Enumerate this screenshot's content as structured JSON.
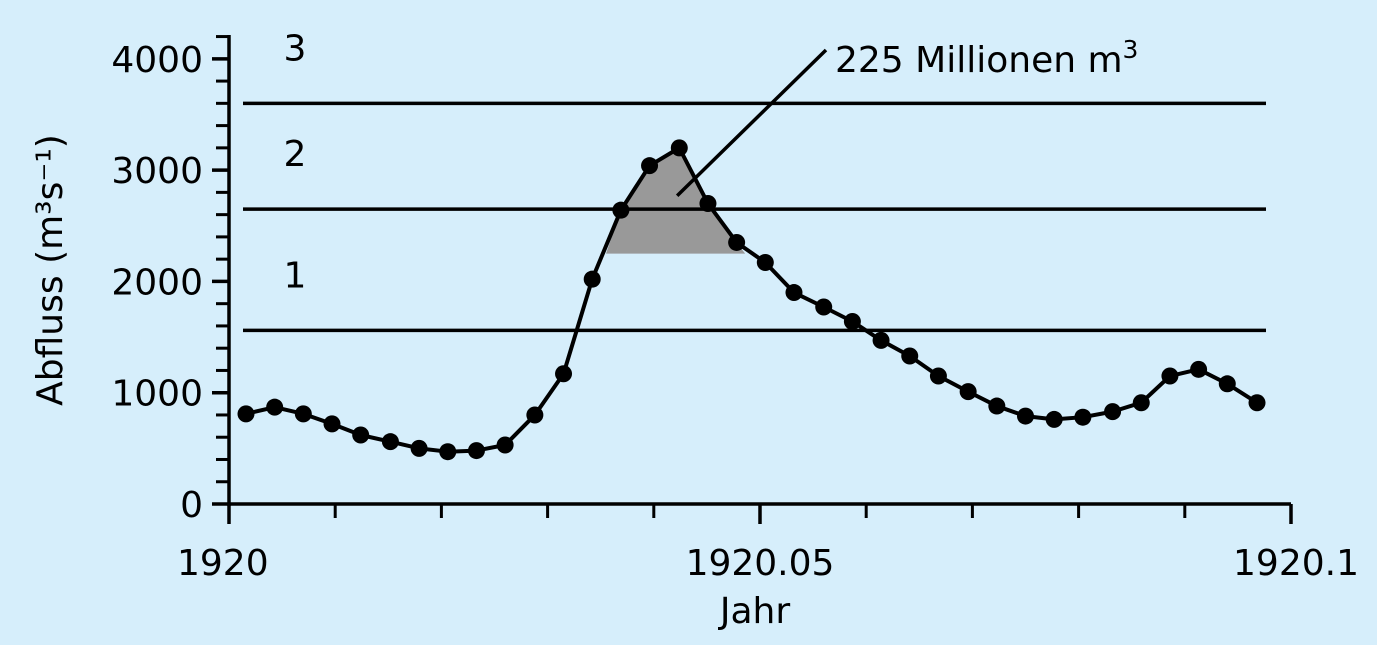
{
  "chart_data": {
    "type": "line",
    "title": "",
    "xlabel": "Jahr",
    "ylabel": "Abfluss (m³s⁻¹)",
    "xlim": [
      1920.0,
      1920.1
    ],
    "ylim": [
      0,
      4250
    ],
    "x_ticks": [
      {
        "value": 1920.0,
        "label": "1920"
      },
      {
        "value": 1920.05,
        "label": "1920.05"
      },
      {
        "value": 1920.1,
        "label": "1920.1"
      }
    ],
    "y_ticks": [
      {
        "value": 0,
        "label": "0"
      },
      {
        "value": 1000,
        "label": "1000"
      },
      {
        "value": 2000,
        "label": "2000"
      },
      {
        "value": 3000,
        "label": "3000"
      },
      {
        "value": 4000,
        "label": "4000"
      }
    ],
    "series": [
      {
        "x": [
          1920.0016,
          1920.0043,
          1920.007,
          1920.0097,
          1920.0124,
          1920.0152,
          1920.0179,
          1920.0206,
          1920.0233,
          1920.026,
          1920.0288,
          1920.0315,
          1920.0342,
          1920.0369,
          1920.0396,
          1920.0424,
          1920.0451,
          1920.0478,
          1920.0505,
          1920.0532,
          1920.056,
          1920.0587,
          1920.0614,
          1920.0641,
          1920.0668,
          1920.0696,
          1920.0723,
          1920.075,
          1920.0777,
          1920.0804,
          1920.0832,
          1920.0859,
          1920.0886,
          1920.0913,
          1920.094,
          1920.0968
        ],
        "y": [
          810,
          870,
          810,
          720,
          620,
          560,
          500,
          470,
          480,
          530,
          800,
          1170,
          2020,
          2640,
          3040,
          3200,
          2700,
          2350,
          2170,
          1900,
          1770,
          1640,
          1470,
          1330,
          1150,
          1010,
          880,
          790,
          760,
          780,
          830,
          910,
          1150,
          1210,
          1080,
          910
        ]
      }
    ],
    "thresholds": [
      {
        "value": 1560,
        "label": "1"
      },
      {
        "value": 2650,
        "label": "2"
      },
      {
        "value": 3600,
        "label": "3"
      }
    ],
    "shaded_region": {
      "x_start": 1920.0355,
      "x_end": 1920.0486,
      "y_floor": 2250
    },
    "annotation": {
      "text_main": "225 Millionen m",
      "text_sup": "3",
      "point_x": 1920.0422,
      "point_y": 2770
    }
  }
}
